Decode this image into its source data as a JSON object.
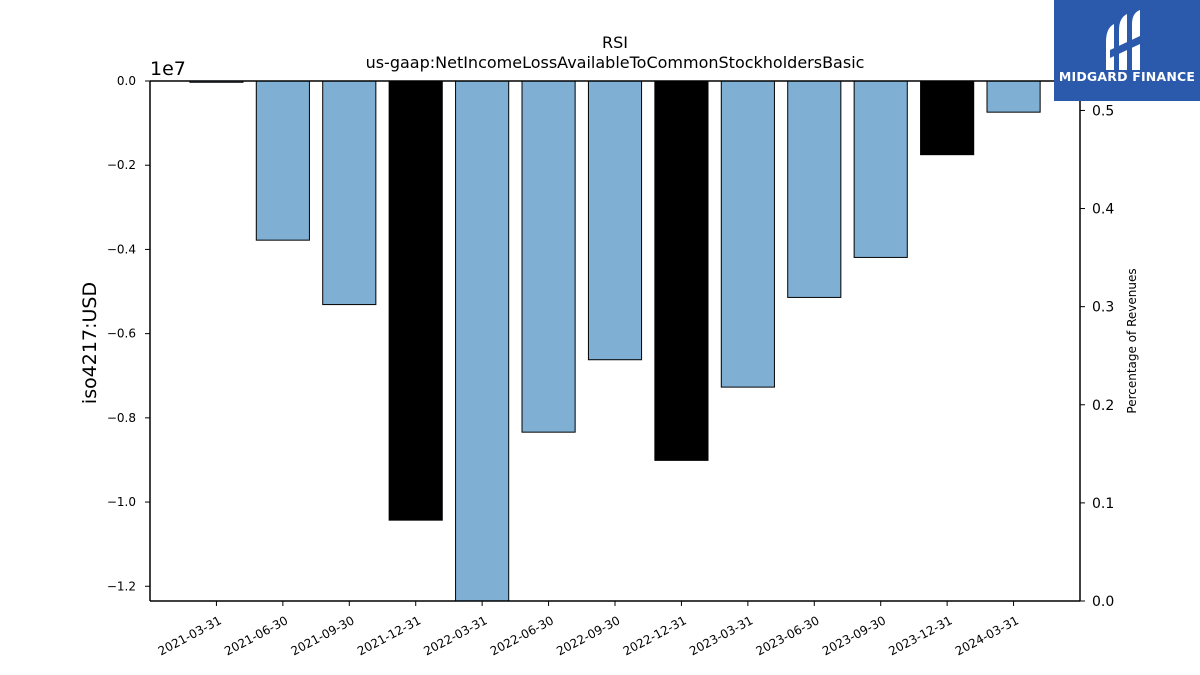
{
  "logo": {
    "text": "MIDGARD FINANCE",
    "icon": "midgard-m-logo-icon",
    "background": "#2b5aad"
  },
  "chart_data": {
    "type": "bar",
    "title": "RSI",
    "subtitle": "us-gaap:NetIncomeLossAvailableToCommonStockholdersBasic",
    "ylabel": "iso4217:USD",
    "y_offset_label": "1e7",
    "y2label": "Percentage of Revenues",
    "categories": [
      "2021-03-31",
      "2021-06-30",
      "2021-09-30",
      "2021-12-31",
      "2022-03-31",
      "2022-06-30",
      "2022-09-30",
      "2022-12-31",
      "2023-03-31",
      "2023-06-30",
      "2023-09-30",
      "2023-12-31",
      "2024-03-31"
    ],
    "values": [
      -30000,
      -3780000,
      -5310000,
      -10430000,
      -12400000,
      -8340000,
      -6620000,
      -9010000,
      -7270000,
      -5140000,
      -4190000,
      -1750000,
      -740000
    ],
    "bar_colors": [
      "#7fb0d4",
      "#7fb0d4",
      "#7fb0d4",
      "#000000",
      "#7fb0d4",
      "#7fb0d4",
      "#7fb0d4",
      "#000000",
      "#7fb0d4",
      "#7fb0d4",
      "#7fb0d4",
      "#000000",
      "#7fb0d4"
    ],
    "ylim": [
      -12350000,
      0
    ],
    "yticks": [
      0,
      -2000000,
      -4000000,
      -6000000,
      -8000000,
      -10000000,
      -12000000
    ],
    "ytick_labels": [
      "0.0",
      "−0.2",
      "−0.4",
      "−0.6",
      "−0.8",
      "−1.0",
      "−1.2"
    ],
    "y2lim": [
      0,
      0.53
    ],
    "y2ticks": [
      0,
      0.1,
      0.2,
      0.3,
      0.4,
      0.5
    ],
    "y2tick_labels": [
      "0.0",
      "0.1",
      "0.2",
      "0.3",
      "0.4",
      "0.5"
    ],
    "grid": false,
    "legend": "none"
  }
}
